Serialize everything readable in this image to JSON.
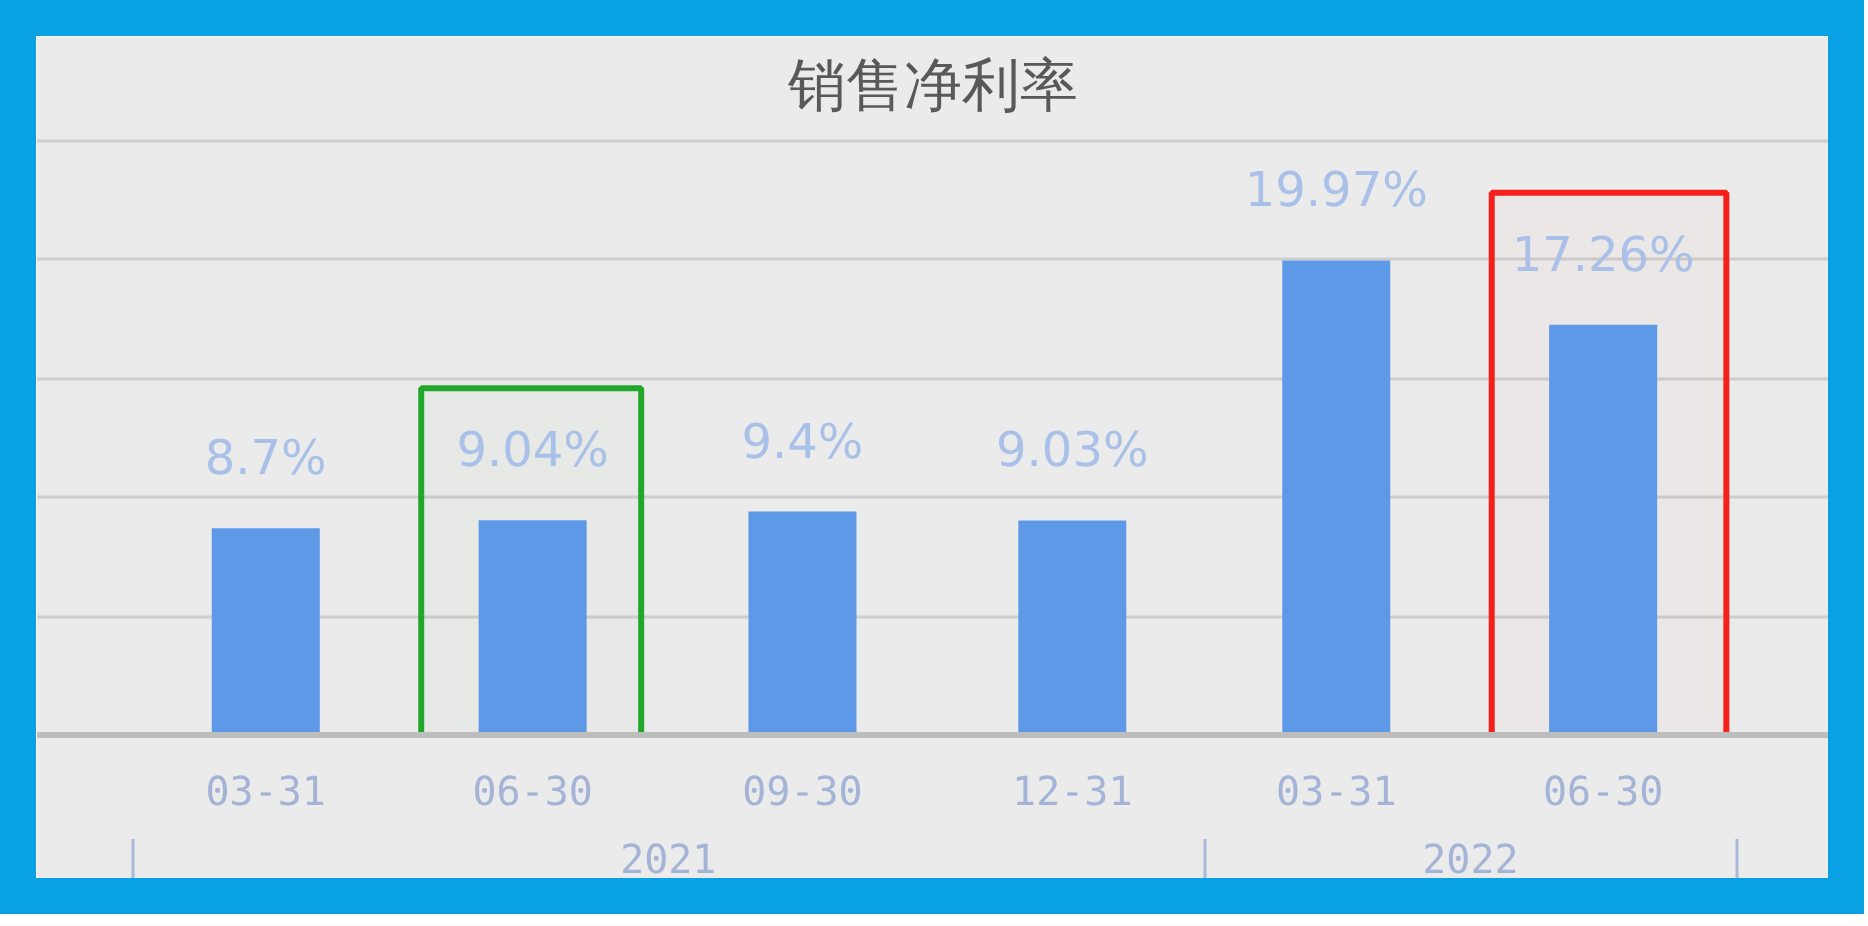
{
  "chart_data": {
    "type": "bar",
    "title": "销售净利率",
    "x": [
      "2021-03-31",
      "2021-06-30",
      "2021-09-30",
      "2021-12-31",
      "2022-03-31",
      "2022-06-30"
    ],
    "values": [
      8.7,
      9.04,
      9.4,
      9.03,
      19.97,
      17.26
    ],
    "color": "#5d99e6",
    "value_labels": [
      "8.7%",
      "9.04%",
      "9.4%",
      "9.03%",
      "19.97%",
      "17.26%"
    ],
    "xlim": [
      "2021-01-12",
      "2022-09-15"
    ],
    "xticks": [
      {
        "value": "2021-03-31",
        "label": "03-31"
      },
      {
        "value": "2021-06-30",
        "label": "06-30"
      },
      {
        "value": "2021-09-30",
        "label": "09-30"
      },
      {
        "value": "2021-12-31",
        "label": "12-31"
      },
      {
        "value": "2022-03-31",
        "label": "03-31"
      },
      {
        "value": "2022-06-30",
        "label": "06-30"
      }
    ],
    "annotations": [
      "2021",
      "2022"
    ],
    "ylim": [
      0,
      25.5
    ],
    "yticks": [
      {
        "value": 0,
        "label": null
      },
      {
        "value": 5,
        "label": null
      },
      {
        "value": 10,
        "label": null
      },
      {
        "value": 15,
        "label": null
      },
      {
        "value": 20,
        "label": null
      },
      {
        "value": 25,
        "label": null
      }
    ],
    "grid": "y",
    "tick_labels": "x",
    "bands": [
      {
        "axis": "x",
        "from": "2021-05-23",
        "to": "2021-08-06",
        "color": "#22a62b"
      },
      {
        "axis": "x",
        "from": "2022-05-23",
        "to": "2022-08-11",
        "color": "#f5201a"
      }
    ]
  }
}
